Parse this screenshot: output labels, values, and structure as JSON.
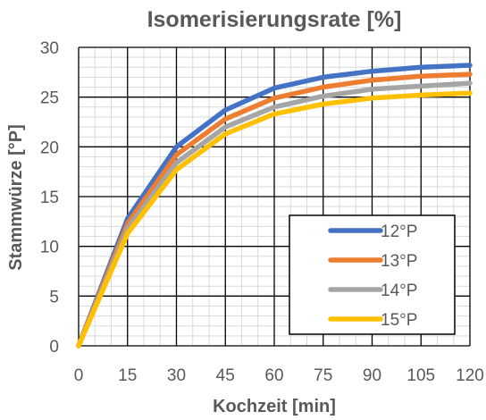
{
  "chart_data": {
    "type": "line",
    "title": "Isomerisierungsrate [%]",
    "xlabel": "Kochzeit [min]",
    "ylabel": "Stammwürze [°P]",
    "x": [
      0,
      15,
      30,
      45,
      60,
      75,
      90,
      105,
      120
    ],
    "xlim": [
      0,
      120
    ],
    "ylim": [
      0,
      30
    ],
    "xticks": [
      "0",
      "15",
      "30",
      "45",
      "60",
      "75",
      "90",
      "105",
      "120"
    ],
    "yticks": [
      "0",
      "5",
      "10",
      "15",
      "20",
      "25",
      "30"
    ],
    "grid": true,
    "legend_position": "bottom-right",
    "series": [
      {
        "name": "12°P",
        "color": "#4472C4",
        "values": [
          0,
          12.8,
          20.0,
          23.7,
          25.9,
          27.0,
          27.6,
          28.0,
          28.2
        ]
      },
      {
        "name": "13°P",
        "color": "#ED7D31",
        "values": [
          0,
          12.3,
          19.2,
          22.8,
          24.9,
          26.0,
          26.7,
          27.1,
          27.3
        ]
      },
      {
        "name": "14°P",
        "color": "#A5A5A5",
        "values": [
          0,
          11.8,
          18.4,
          22.0,
          24.0,
          25.1,
          25.8,
          26.1,
          26.4
        ]
      },
      {
        "name": "15°P",
        "color": "#FFC000",
        "values": [
          0,
          11.3,
          17.7,
          21.3,
          23.3,
          24.3,
          24.9,
          25.2,
          25.4
        ]
      }
    ]
  }
}
